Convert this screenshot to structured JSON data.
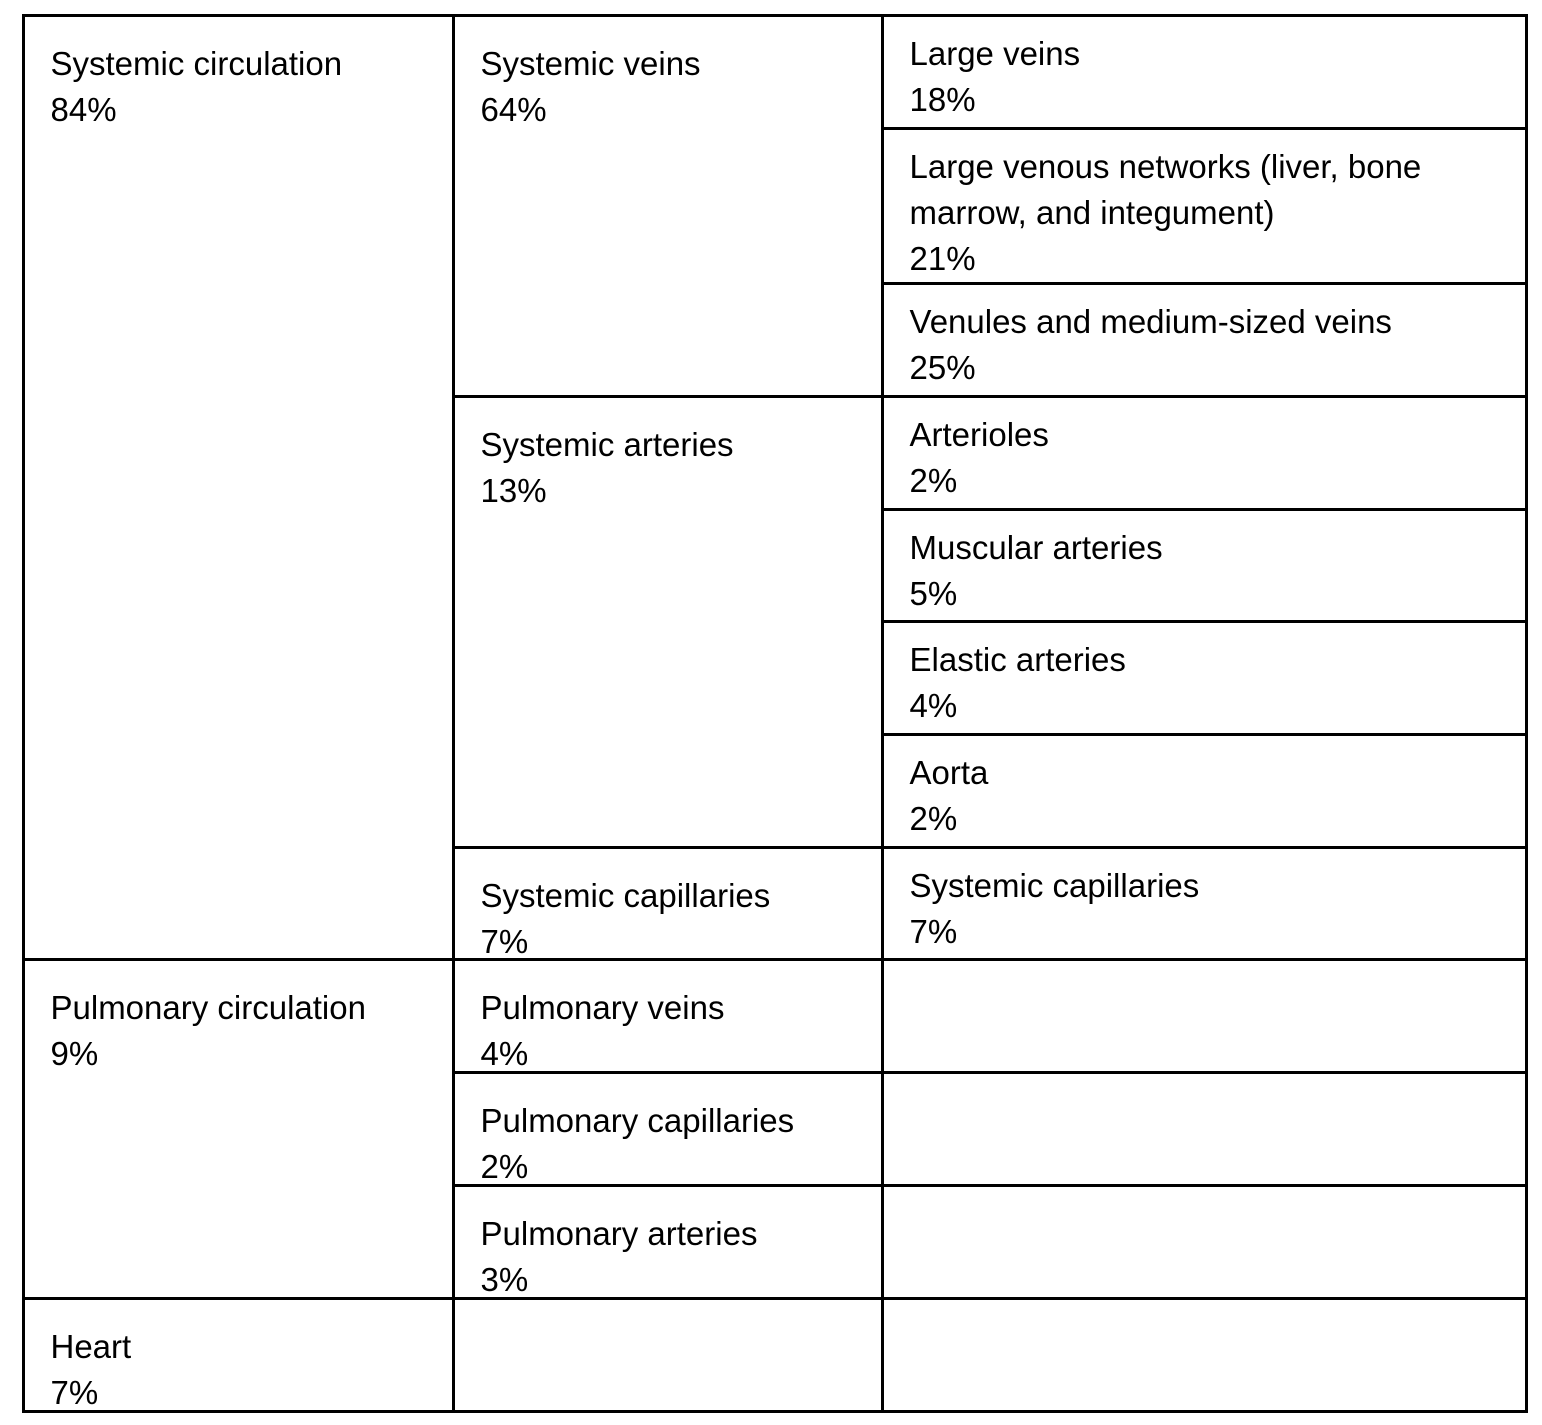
{
  "table": {
    "col1": [
      {
        "label": "Systemic circulation",
        "value": "84%"
      },
      {
        "label": "Pulmonary circulation",
        "value": "9%"
      },
      {
        "label": "Heart",
        "value": "7%"
      }
    ],
    "col2": [
      {
        "label": "Systemic veins",
        "value": "64%"
      },
      {
        "label": "Systemic arteries",
        "value": "13%"
      },
      {
        "label": "Systemic capillaries",
        "value": "7%"
      },
      {
        "label": "Pulmonary veins",
        "value": "4%"
      },
      {
        "label": "Pulmonary capillaries",
        "value": "2%"
      },
      {
        "label": "Pulmonary arteries",
        "value": "3%"
      },
      {
        "label": "",
        "value": ""
      }
    ],
    "col3": [
      {
        "label": "Large veins",
        "value": "18%"
      },
      {
        "label": "Large venous networks (liver, bone marrow, and integument)",
        "value": "21%"
      },
      {
        "label": "Venules and medium-sized veins",
        "value": "25%"
      },
      {
        "label": "Arterioles",
        "value": "2%"
      },
      {
        "label": "Muscular arteries",
        "value": "5%"
      },
      {
        "label": "Elastic arteries",
        "value": "4%"
      },
      {
        "label": "Aorta",
        "value": "2%"
      },
      {
        "label": "Systemic capillaries",
        "value": "7%"
      },
      {
        "label": "",
        "value": ""
      },
      {
        "label": "",
        "value": ""
      },
      {
        "label": "",
        "value": ""
      },
      {
        "label": "",
        "value": ""
      }
    ]
  }
}
